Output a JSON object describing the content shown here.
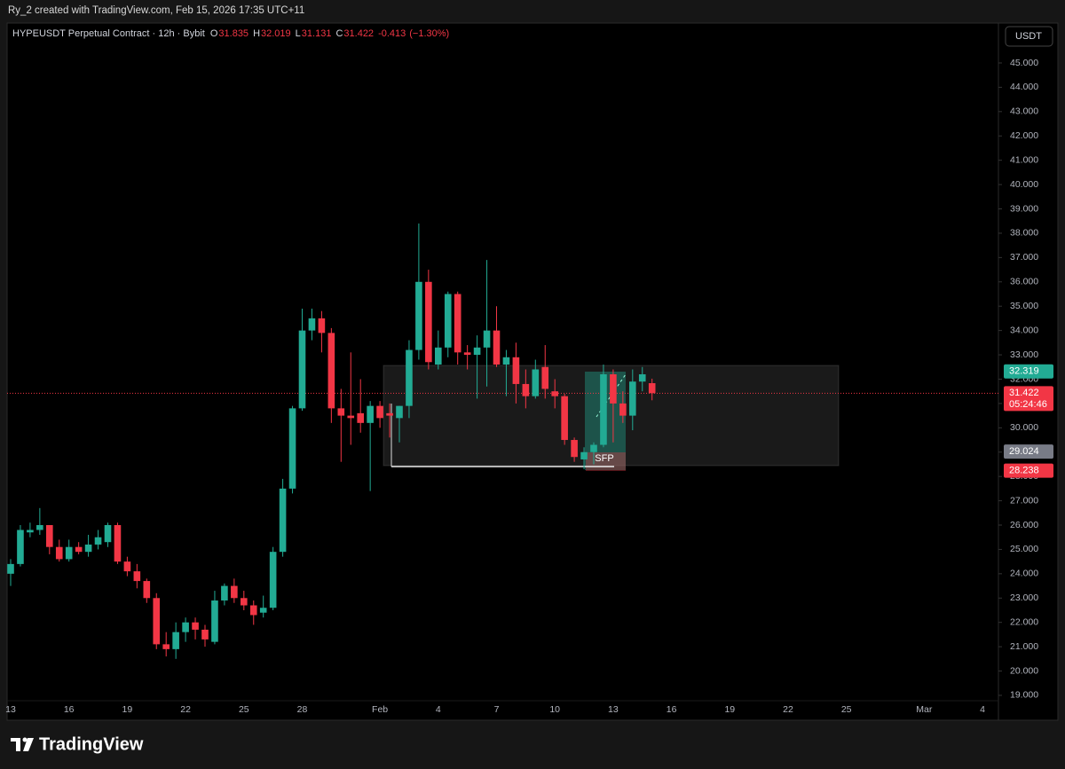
{
  "header_note": "Ry_2 created with TradingView.com, Feb 15, 2026 17:35 UTC+11",
  "branding": "TradingView",
  "chart_data": {
    "type": "candlestick",
    "title": "HYPEUSDT Perpetual Contract · 12h · Bybit",
    "ohlc_labels": [
      "O",
      "H",
      "L",
      "C"
    ],
    "change": -0.413,
    "change_pct": "(−1.30%)",
    "currency": "USDT",
    "annotation": "SFP",
    "countdown": "05:24:46",
    "up_color": "#22ab94",
    "down_color": "#f23645",
    "categories": [
      "13",
      null,
      null,
      null,
      null,
      null,
      "16",
      null,
      null,
      null,
      null,
      null,
      "19",
      null,
      null,
      null,
      null,
      null,
      "22",
      null,
      null,
      null,
      null,
      null,
      "25",
      null,
      null,
      null,
      null,
      null,
      "28",
      null,
      null,
      null,
      null,
      null,
      null,
      null,
      "Feb",
      null,
      null,
      null,
      null,
      null,
      "4",
      null,
      null,
      null,
      null,
      null,
      "7",
      null,
      null,
      null,
      null,
      null,
      "10",
      null,
      null,
      null,
      null,
      null,
      "13",
      null,
      null,
      null,
      null,
      null,
      "16",
      null,
      null,
      null,
      null,
      null,
      "19",
      null,
      null,
      null,
      null,
      null,
      "22",
      null,
      null,
      null,
      null,
      null,
      "25",
      null,
      null,
      null,
      null,
      null,
      null,
      null,
      "Mar",
      null,
      null,
      null,
      null,
      null,
      "4",
      null
    ],
    "open": [
      24.0,
      24.4,
      25.7,
      25.8,
      26.0,
      25.1,
      24.6,
      25.1,
      24.9,
      25.2,
      25.3,
      26.0,
      24.5,
      24.1,
      23.7,
      23.0,
      21.1,
      20.9,
      21.6,
      22.0,
      21.7,
      21.2,
      22.9,
      23.5,
      23.0,
      22.7,
      22.4,
      22.6,
      24.9,
      27.5,
      30.8,
      34.0,
      34.5,
      33.9,
      30.8,
      30.5,
      30.6,
      30.2,
      30.9,
      30.6,
      30.4,
      30.9,
      33.2,
      36.0,
      32.6,
      33.3,
      35.5,
      33.1,
      33.0,
      33.3,
      34.0,
      32.6,
      32.9,
      31.8,
      31.3,
      32.5,
      31.5,
      31.3,
      29.5,
      28.7,
      29.0,
      29.3,
      32.2,
      31.0,
      30.5,
      31.9,
      31.835,
      null,
      null,
      null,
      null,
      null,
      null,
      null,
      null,
      null,
      null,
      null,
      null,
      null,
      null,
      null,
      null,
      null,
      null,
      null,
      null,
      null,
      null,
      null,
      null,
      null,
      null,
      null,
      null,
      null,
      null,
      null,
      null,
      null,
      null,
      null
    ],
    "high": [
      24.6,
      26.0,
      26.1,
      26.7,
      26.0,
      25.4,
      25.4,
      25.3,
      25.6,
      25.8,
      26.1,
      26.1,
      24.7,
      24.4,
      23.8,
      23.2,
      21.6,
      22.0,
      22.2,
      22.2,
      21.9,
      23.3,
      23.6,
      23.8,
      23.3,
      22.9,
      23.1,
      25.1,
      27.9,
      30.9,
      34.9,
      34.9,
      34.8,
      34.1,
      31.6,
      33.1,
      32.0,
      31.1,
      31.1,
      31.0,
      30.9,
      33.6,
      38.4,
      36.5,
      34.0,
      35.6,
      35.6,
      33.4,
      33.8,
      36.9,
      35.0,
      33.2,
      33.5,
      32.4,
      32.8,
      33.4,
      32.0,
      31.4,
      29.6,
      29.2,
      29.4,
      32.6,
      32.4,
      31.5,
      32.4,
      32.5,
      32.019,
      null,
      null,
      null,
      null,
      null,
      null,
      null,
      null,
      null,
      null,
      null,
      null,
      null,
      null,
      null,
      null,
      null,
      null,
      null,
      null,
      null,
      null,
      null,
      null,
      null,
      null,
      null,
      null,
      null,
      null,
      null,
      null,
      null,
      null,
      null
    ],
    "low": [
      23.5,
      24.3,
      25.5,
      25.6,
      24.8,
      24.5,
      24.5,
      24.8,
      24.7,
      25.0,
      25.1,
      24.4,
      23.9,
      23.4,
      22.8,
      20.9,
      20.6,
      20.5,
      21.2,
      21.3,
      21.0,
      21.1,
      22.7,
      22.8,
      22.5,
      21.9,
      22.2,
      22.5,
      24.7,
      27.3,
      30.7,
      33.6,
      33.1,
      30.2,
      28.6,
      29.3,
      29.8,
      27.4,
      30.0,
      29.6,
      29.4,
      30.4,
      32.8,
      32.4,
      32.4,
      32.9,
      32.6,
      32.4,
      31.2,
      31.7,
      32.5,
      31.3,
      31.0,
      30.8,
      31.2,
      31.2,
      30.8,
      29.3,
      28.6,
      28.3,
      28.5,
      29.2,
      29.4,
      30.2,
      29.9,
      31.5,
      31.131,
      null,
      null,
      null,
      null,
      null,
      null,
      null,
      null,
      null,
      null,
      null,
      null,
      null,
      null,
      null,
      null,
      null,
      null,
      null,
      null,
      null,
      null,
      null,
      null,
      null,
      null,
      null,
      null,
      null,
      null,
      null,
      null,
      null,
      null,
      null
    ],
    "close": [
      24.4,
      25.8,
      25.8,
      26.0,
      25.1,
      24.6,
      25.1,
      24.9,
      25.2,
      25.5,
      26.0,
      24.5,
      24.1,
      23.7,
      23.0,
      21.1,
      20.9,
      21.6,
      22.0,
      21.7,
      21.3,
      22.9,
      23.5,
      23.0,
      22.7,
      22.3,
      22.6,
      24.9,
      27.5,
      30.8,
      34.0,
      34.5,
      33.9,
      30.8,
      30.5,
      30.4,
      30.2,
      30.9,
      30.4,
      30.5,
      30.9,
      33.2,
      36.0,
      32.7,
      33.3,
      35.5,
      33.1,
      33.0,
      33.3,
      34.0,
      32.6,
      32.9,
      31.8,
      31.3,
      32.4,
      31.6,
      31.3,
      29.5,
      28.8,
      29.0,
      29.3,
      32.2,
      31.0,
      30.5,
      31.9,
      32.2,
      31.422,
      null,
      null,
      null,
      null,
      null,
      null,
      null,
      null,
      null,
      null,
      null,
      null,
      null,
      null,
      null,
      null,
      null,
      null,
      null,
      null,
      null,
      null,
      null,
      null,
      null,
      null,
      null,
      null,
      null,
      null,
      null,
      null,
      null,
      null,
      null
    ],
    "price_tags": [
      {
        "value": 32.319,
        "color": "#22ab94"
      },
      {
        "value": 29.024,
        "color": "#787b86"
      },
      {
        "value": 28.238,
        "color": "#f23645"
      }
    ],
    "ylim": [
      18.78,
      46.64
    ],
    "yticks": [
      {
        "value": 19,
        "label": "19.000"
      },
      {
        "value": 20,
        "label": "20.000"
      },
      {
        "value": 21,
        "label": "21.000"
      },
      {
        "value": 22,
        "label": "22.000"
      },
      {
        "value": 23,
        "label": "23.000"
      },
      {
        "value": 24,
        "label": "24.000"
      },
      {
        "value": 25,
        "label": "25.000"
      },
      {
        "value": 26,
        "label": "26.000"
      },
      {
        "value": 27,
        "label": "27.000"
      },
      {
        "value": 28,
        "label": "28.000"
      },
      {
        "value": 29,
        "label": "29.000"
      },
      {
        "value": 30,
        "label": "30.000"
      },
      {
        "value": 31,
        "label": "31.000"
      },
      {
        "value": 32,
        "label": "32.000"
      },
      {
        "value": 33,
        "label": "33.000"
      },
      {
        "value": 34,
        "label": "34.000"
      },
      {
        "value": 35,
        "label": "35.000"
      },
      {
        "value": 36,
        "label": "36.000"
      },
      {
        "value": 37,
        "label": "37.000"
      },
      {
        "value": 38,
        "label": "38.000"
      },
      {
        "value": 39,
        "label": "39.000"
      },
      {
        "value": 40,
        "label": "40.000"
      },
      {
        "value": 41,
        "label": "41.000"
      },
      {
        "value": 42,
        "label": "42.000"
      },
      {
        "value": 43,
        "label": "43.000"
      },
      {
        "value": 44,
        "label": "44.000"
      },
      {
        "value": 45,
        "label": "45.000"
      }
    ],
    "grid": false
  }
}
